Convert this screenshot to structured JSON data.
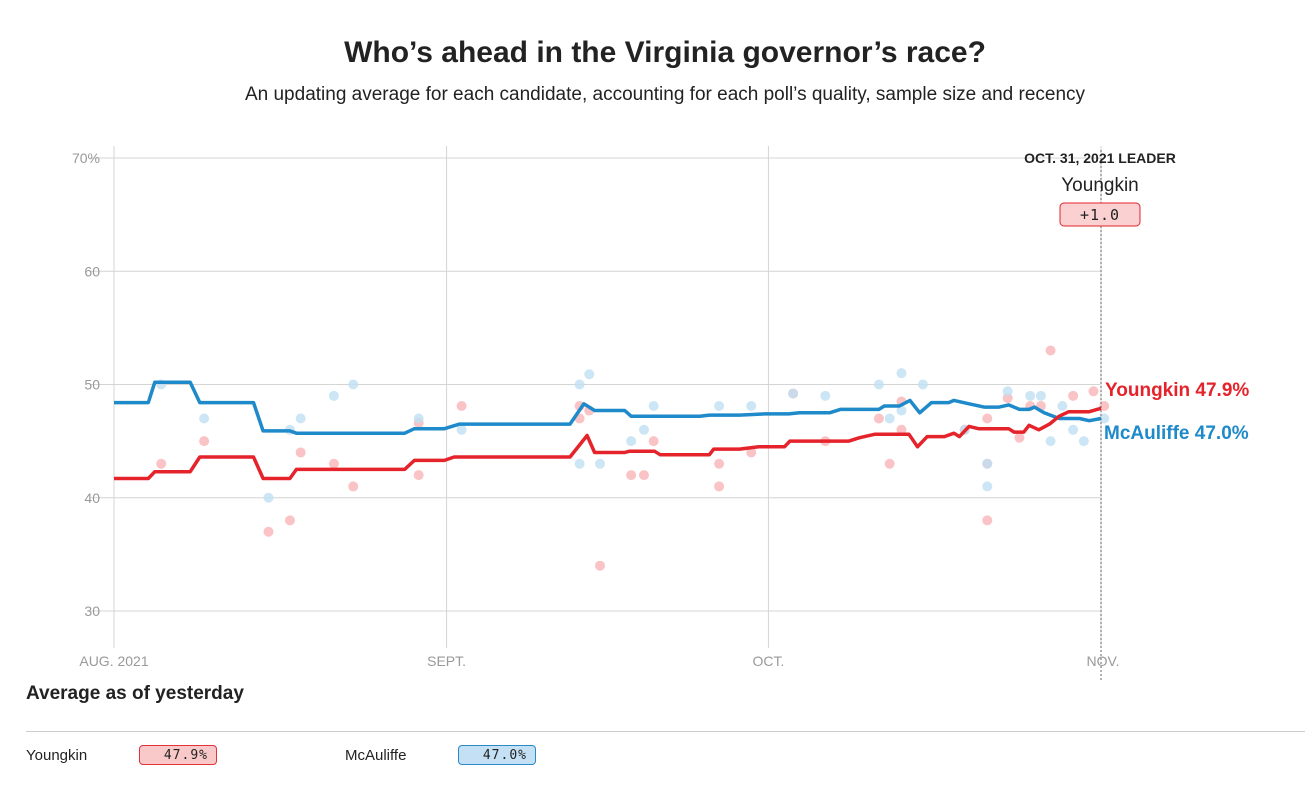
{
  "header": {
    "title": "Who’s ahead in the Virginia governor’s race?",
    "subtitle": "An updating average for each candidate, accounting for each poll’s quality, sample size and recency"
  },
  "chart_data": {
    "type": "line",
    "x_unit": "days since Aug. 1, 2021",
    "xlim": [
      0,
      92
    ],
    "ylim": [
      30,
      70
    ],
    "y_ticks": [
      {
        "v": 70,
        "label": "70%"
      },
      {
        "v": 60,
        "label": "60"
      },
      {
        "v": 50,
        "label": "50"
      },
      {
        "v": 40,
        "label": "40"
      },
      {
        "v": 30,
        "label": "30"
      }
    ],
    "x_ticks": [
      {
        "v": 0,
        "label": "AUG. 2021"
      },
      {
        "v": 31,
        "label": "SEPT."
      },
      {
        "v": 61,
        "label": "OCT."
      },
      {
        "v": 92,
        "label": "NOV."
      }
    ],
    "grid": true,
    "leader": {
      "heading": "OCT. 31, 2021 LEADER",
      "name": "Youngkin",
      "margin": "+1.0",
      "day": 92
    },
    "series": [
      {
        "name": "Youngkin",
        "end_label": "Youngkin 47.9%",
        "color": "#e5232b",
        "dot_color": "#f9b4b6",
        "average": [
          [
            0,
            41.7
          ],
          [
            3.2,
            41.7
          ],
          [
            3.8,
            42.3
          ],
          [
            7.1,
            42.3
          ],
          [
            8,
            43.6
          ],
          [
            13,
            43.6
          ],
          [
            13.9,
            41.7
          ],
          [
            16.4,
            41.7
          ],
          [
            17,
            42.5
          ],
          [
            27.1,
            42.5
          ],
          [
            28,
            43.3
          ],
          [
            30.8,
            43.3
          ],
          [
            31.7,
            43.6
          ],
          [
            42.5,
            43.6
          ],
          [
            44.1,
            45.5
          ],
          [
            44.8,
            44.0
          ],
          [
            47.6,
            44.0
          ],
          [
            48,
            44.1
          ],
          [
            50.4,
            44.1
          ],
          [
            50.9,
            43.8
          ],
          [
            55.5,
            43.8
          ],
          [
            55.9,
            44.3
          ],
          [
            58.3,
            44.3
          ],
          [
            60.1,
            44.5
          ],
          [
            62.5,
            44.5
          ],
          [
            63,
            45.0
          ],
          [
            68.5,
            45.0
          ],
          [
            69.5,
            45.3
          ],
          [
            70.9,
            45.6
          ],
          [
            74.1,
            45.6
          ],
          [
            74.9,
            44.5
          ],
          [
            75.8,
            45.4
          ],
          [
            77.4,
            45.4
          ],
          [
            78.3,
            45.7
          ],
          [
            78.8,
            45.4
          ],
          [
            79.7,
            46.3
          ],
          [
            80.6,
            46.1
          ],
          [
            83.4,
            46.1
          ],
          [
            83.9,
            45.8
          ],
          [
            84.8,
            45.8
          ],
          [
            85.3,
            46.4
          ],
          [
            86.2,
            46.0
          ],
          [
            87.2,
            46.5
          ],
          [
            88.1,
            47.2
          ],
          [
            89,
            47.6
          ],
          [
            90.9,
            47.6
          ],
          [
            92,
            47.9
          ]
        ],
        "polls": [
          [
            4.4,
            43
          ],
          [
            8.4,
            45
          ],
          [
            14.4,
            37
          ],
          [
            16.4,
            38
          ],
          [
            17.4,
            44
          ],
          [
            20.5,
            43
          ],
          [
            22.3,
            41
          ],
          [
            28.4,
            42
          ],
          [
            28.4,
            46.6
          ],
          [
            32.4,
            48.1
          ],
          [
            43.4,
            48.1
          ],
          [
            43.4,
            47
          ],
          [
            44.3,
            47.7
          ],
          [
            45.3,
            34
          ],
          [
            48.2,
            42
          ],
          [
            49.4,
            42
          ],
          [
            50.3,
            45
          ],
          [
            56.4,
            43
          ],
          [
            56.4,
            41
          ],
          [
            59.4,
            44
          ],
          [
            63.3,
            49.2
          ],
          [
            66.3,
            45
          ],
          [
            71.3,
            47
          ],
          [
            72.3,
            43
          ],
          [
            73.4,
            46
          ],
          [
            73.4,
            48.5
          ],
          [
            79.3,
            46
          ],
          [
            81.4,
            43
          ],
          [
            81.4,
            38
          ],
          [
            81.4,
            47
          ],
          [
            83.3,
            48.8
          ],
          [
            84.4,
            45.3
          ],
          [
            85.4,
            48.1
          ],
          [
            86.4,
            48.1
          ],
          [
            87.3,
            53
          ],
          [
            89.4,
            49
          ],
          [
            91.3,
            49.4
          ],
          [
            92.3,
            48.1
          ]
        ]
      },
      {
        "name": "McAuliffe",
        "end_label": "McAuliffe 47.0%",
        "color": "#1f8ac9",
        "dot_color": "#bfe0f3",
        "average": [
          [
            0,
            48.4
          ],
          [
            3.2,
            48.4
          ],
          [
            3.8,
            50.2
          ],
          [
            7.1,
            50.2
          ],
          [
            8,
            48.4
          ],
          [
            13,
            48.4
          ],
          [
            13.9,
            45.9
          ],
          [
            16.4,
            45.9
          ],
          [
            17,
            45.7
          ],
          [
            27.1,
            45.7
          ],
          [
            28,
            46.1
          ],
          [
            30.8,
            46.1
          ],
          [
            32.2,
            46.5
          ],
          [
            42.5,
            46.5
          ],
          [
            43.8,
            48.3
          ],
          [
            44.8,
            47.7
          ],
          [
            47.6,
            47.7
          ],
          [
            48.2,
            47.2
          ],
          [
            54.6,
            47.2
          ],
          [
            55.5,
            47.3
          ],
          [
            58.3,
            47.3
          ],
          [
            60.7,
            47.4
          ],
          [
            62.9,
            47.4
          ],
          [
            63.9,
            47.5
          ],
          [
            66.7,
            47.5
          ],
          [
            67.7,
            47.8
          ],
          [
            71.3,
            47.8
          ],
          [
            71.8,
            48.1
          ],
          [
            73.2,
            48.1
          ],
          [
            74.2,
            48.6
          ],
          [
            75.1,
            47.5
          ],
          [
            76.2,
            48.4
          ],
          [
            77.8,
            48.4
          ],
          [
            78.3,
            48.6
          ],
          [
            79.7,
            48.3
          ],
          [
            81.1,
            48.0
          ],
          [
            82.5,
            48.0
          ],
          [
            83.4,
            48.2
          ],
          [
            84.4,
            47.8
          ],
          [
            85.3,
            47.8
          ],
          [
            85.8,
            48.0
          ],
          [
            86.7,
            47.5
          ],
          [
            88.1,
            47.0
          ],
          [
            90,
            47.0
          ],
          [
            90.9,
            46.8
          ],
          [
            92,
            47.0
          ]
        ],
        "polls": [
          [
            4.4,
            50
          ],
          [
            8.4,
            47
          ],
          [
            14.4,
            40
          ],
          [
            16.4,
            46
          ],
          [
            17.4,
            47
          ],
          [
            20.5,
            49
          ],
          [
            22.3,
            50
          ],
          [
            28.4,
            47
          ],
          [
            32.4,
            46
          ],
          [
            43.4,
            50
          ],
          [
            44.3,
            50.9
          ],
          [
            45.3,
            43
          ],
          [
            43.4,
            43
          ],
          [
            48.2,
            45
          ],
          [
            49.4,
            46
          ],
          [
            50.3,
            48.1
          ],
          [
            56.4,
            48.1
          ],
          [
            59.4,
            48.1
          ],
          [
            63.3,
            49.2
          ],
          [
            66.3,
            49
          ],
          [
            71.3,
            50
          ],
          [
            72.3,
            47
          ],
          [
            73.4,
            51
          ],
          [
            73.4,
            47.7
          ],
          [
            75.4,
            50
          ],
          [
            79.3,
            46
          ],
          [
            81.4,
            41
          ],
          [
            81.4,
            43
          ],
          [
            83.3,
            49.4
          ],
          [
            85.4,
            49
          ],
          [
            86.4,
            49
          ],
          [
            87.3,
            45
          ],
          [
            88.4,
            48.1
          ],
          [
            89.4,
            46
          ],
          [
            90.4,
            45
          ],
          [
            92.3,
            47
          ]
        ]
      }
    ]
  },
  "summary": {
    "heading": "Average as of yesterday",
    "items": [
      {
        "name": "Youngkin",
        "value": "47.9%"
      },
      {
        "name": "McAuliffe",
        "value": "47.0%"
      }
    ]
  }
}
